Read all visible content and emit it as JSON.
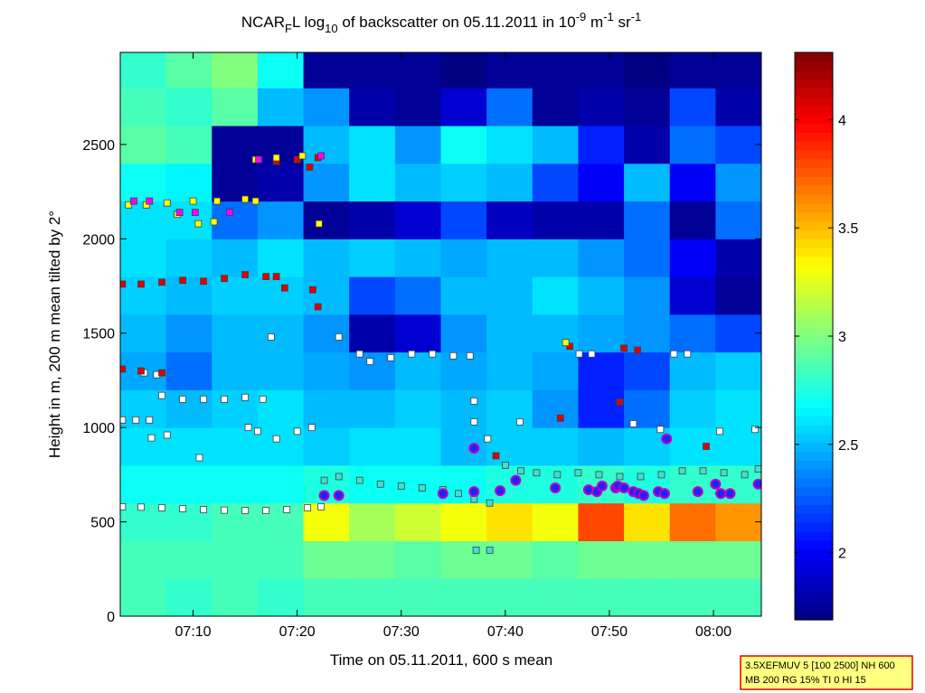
{
  "chart_data": {
    "type": "heatmap",
    "title": [
      "NCAR",
      "F",
      "L log",
      "10",
      " of backscatter on 05.11.2011 in 10",
      "-9",
      " m",
      "-1",
      " sr",
      "-1"
    ],
    "x_label": "Time on 05.11.2011, 600 s mean",
    "y_label": "Height in m, 200 m mean tilted by 2°",
    "xlim": [
      423,
      484.6
    ],
    "xticks": [
      {
        "value": 430,
        "label": "07:10"
      },
      {
        "value": 440,
        "label": "07:20"
      },
      {
        "value": 450,
        "label": "07:30"
      },
      {
        "value": 460,
        "label": "07:40"
      },
      {
        "value": 470,
        "label": "07:50"
      },
      {
        "value": 480,
        "label": "08:00"
      }
    ],
    "ylim": [
      0,
      2988
    ],
    "yticks": [
      0,
      500,
      1000,
      1500,
      2000,
      2500
    ],
    "clim": [
      1.69,
      4.31
    ],
    "cticks": [
      2,
      2.5,
      3,
      3.5,
      4
    ],
    "colormap": "jet",
    "xbins": [
      423,
      427.4,
      431.8,
      436.2,
      440.6,
      445,
      449.4,
      453.8,
      458.2,
      462.6,
      467,
      471.4,
      475.8,
      480.2,
      484.6
    ],
    "ybins": [
      0,
      200,
      400,
      600,
      800,
      1000,
      1200,
      1400,
      1600,
      1800,
      2000,
      2200,
      2400,
      2600,
      2800,
      3000
    ],
    "z": [
      [
        2.85,
        2.8,
        2.85,
        2.8,
        2.85,
        2.85,
        2.85,
        2.85,
        2.85,
        2.85,
        2.85,
        2.85,
        2.85,
        2.85
      ],
      [
        2.85,
        2.85,
        2.85,
        2.85,
        2.95,
        2.95,
        2.9,
        2.95,
        2.95,
        2.9,
        2.95,
        2.95,
        2.95,
        2.95
      ],
      [
        2.8,
        2.8,
        2.85,
        2.85,
        3.3,
        3.1,
        3.2,
        3.3,
        3.4,
        3.3,
        3.8,
        3.4,
        3.7,
        3.6
      ],
      [
        2.7,
        2.7,
        2.7,
        2.7,
        2.75,
        2.7,
        2.7,
        2.7,
        2.75,
        2.75,
        2.8,
        2.75,
        2.8,
        2.8
      ],
      [
        2.6,
        2.6,
        2.6,
        2.6,
        2.55,
        2.6,
        2.6,
        2.5,
        2.55,
        2.55,
        2.5,
        2.55,
        2.6,
        2.6
      ],
      [
        2.55,
        2.5,
        2.55,
        2.6,
        2.5,
        2.5,
        2.55,
        2.5,
        2.55,
        2.4,
        2.1,
        2.3,
        2.55,
        2.6
      ],
      [
        2.45,
        2.3,
        2.5,
        2.5,
        2.45,
        2.4,
        2.5,
        2.45,
        2.5,
        2.45,
        2.1,
        2.2,
        2.5,
        2.55
      ],
      [
        2.5,
        2.4,
        2.5,
        2.5,
        2.4,
        1.8,
        1.9,
        2.4,
        2.5,
        2.5,
        2.45,
        2.4,
        2.3,
        2.2
      ],
      [
        2.55,
        2.5,
        2.55,
        2.55,
        2.5,
        2.2,
        2.3,
        2.5,
        2.5,
        2.6,
        2.5,
        2.4,
        1.9,
        1.75
      ],
      [
        2.6,
        2.55,
        2.5,
        2.6,
        2.5,
        2.55,
        2.5,
        2.45,
        2.5,
        2.5,
        2.4,
        2.3,
        2.0,
        1.8
      ],
      [
        2.6,
        2.6,
        2.3,
        2.4,
        1.75,
        1.8,
        1.9,
        2.2,
        1.85,
        1.8,
        1.8,
        2.3,
        1.75,
        2.3
      ],
      [
        2.7,
        2.65,
        1.75,
        1.8,
        2.4,
        2.6,
        2.5,
        2.55,
        2.5,
        2.2,
        2.0,
        2.5,
        2.0,
        2.4
      ],
      [
        2.9,
        2.85,
        1.75,
        1.75,
        2.5,
        2.6,
        2.4,
        2.7,
        2.6,
        2.5,
        2.1,
        1.8,
        2.3,
        2.2
      ],
      [
        2.85,
        2.8,
        2.9,
        2.5,
        2.4,
        1.8,
        1.75,
        1.9,
        2.3,
        1.75,
        1.8,
        1.75,
        2.2,
        1.8
      ],
      [
        2.8,
        2.9,
        3.0,
        2.7,
        1.75,
        1.75,
        1.75,
        1.7,
        1.75,
        1.75,
        1.75,
        1.7,
        1.75,
        1.75
      ]
    ],
    "overlays": [
      {
        "marker": "square",
        "color": "#ffffff",
        "x": [
          423.2,
          425,
          427,
          429,
          431,
          433,
          435,
          437,
          439,
          441,
          442.3,
          423.2,
          424.5,
          425.8,
          426,
          427.5,
          427,
          429,
          431,
          433,
          435,
          436.7,
          425.3,
          426.5,
          438,
          440,
          441.4,
          435.3,
          436.2,
          437.5,
          430.6,
          444,
          446,
          447,
          449,
          451,
          453,
          455,
          456.6,
          457,
          457,
          458.3,
          461.4,
          467.1,
          468.3,
          476.2,
          477.5,
          472.3,
          474.9,
          480.6,
          484
        ],
        "y": [
          580,
          578,
          575,
          570,
          565,
          562,
          560,
          560,
          565,
          575,
          580,
          1040,
          1040,
          1040,
          945,
          960,
          1170,
          1150,
          1150,
          1150,
          1160,
          1150,
          1290,
          1280,
          940,
          980,
          1000,
          1000,
          980,
          1480,
          840,
          1480,
          1390,
          1350,
          1370,
          1390,
          1390,
          1380,
          1380,
          1140,
          1030,
          940,
          1030,
          1390,
          1390,
          1390,
          1390,
          1020,
          990,
          980,
          990
        ]
      },
      {
        "marker": "square",
        "color": "#40e0d0",
        "x": [
          442.6,
          444,
          446,
          448,
          450,
          452,
          454,
          455.5,
          457,
          458.5,
          460,
          461.5,
          463,
          465,
          467,
          469,
          471,
          473,
          475,
          477,
          479,
          481,
          483,
          484.3,
          457.2,
          458.5
        ],
        "y": [
          720,
          740,
          720,
          700,
          690,
          680,
          670,
          650,
          620,
          600,
          800,
          770,
          760,
          750,
          760,
          750,
          740,
          740,
          750,
          770,
          770,
          760,
          750,
          780,
          350,
          350
        ]
      },
      {
        "marker": "square",
        "color": "#e00000",
        "x": [
          423.2,
          425,
          427,
          429,
          431,
          433,
          435,
          437,
          438,
          438.8,
          441.5,
          442,
          423.2,
          425,
          427,
          436.2,
          438,
          440,
          442,
          441.2,
          466.2,
          471.4,
          472.7,
          459.1,
          465.3,
          471,
          479.3
        ],
        "y": [
          1760,
          1760,
          1770,
          1780,
          1775,
          1790,
          1810,
          1800,
          1800,
          1740,
          1730,
          1640,
          1310,
          1300,
          1290,
          2420,
          2410,
          2420,
          2430,
          2380,
          1430,
          1420,
          1410,
          850,
          1050,
          1135,
          900
        ]
      },
      {
        "marker": "square",
        "color": "#ffff00",
        "x": [
          423.8,
          425.5,
          427.5,
          428.5,
          430,
          430.5,
          432,
          432.3,
          435,
          436,
          436,
          438,
          440.5,
          442.1,
          465.8
        ],
        "y": [
          2180,
          2180,
          2190,
          2130,
          2200,
          2080,
          2090,
          2200,
          2210,
          2200,
          2420,
          2430,
          2440,
          2080,
          1450
        ]
      },
      {
        "marker": "square",
        "color": "#ff00ff",
        "x": [
          424.3,
          425.8,
          428.7,
          430.2,
          433.5,
          436.3,
          442.3
        ],
        "y": [
          2200,
          2200,
          2140,
          2140,
          2140,
          2420,
          2440
        ]
      },
      {
        "marker": "circle",
        "color": "#2020ff",
        "x": [
          442.6,
          444,
          454,
          457,
          457,
          459.5,
          461,
          464.8,
          468,
          468.8,
          469.3,
          470.6,
          470.8,
          471.4,
          472.3,
          472.8,
          473.3,
          474.7,
          475.3,
          475.5,
          478.5,
          480.2,
          480.7,
          481.6,
          484.3
        ],
        "y": [
          640,
          640,
          650,
          890,
          660,
          665,
          720,
          680,
          670,
          660,
          690,
          680,
          690,
          680,
          660,
          650,
          640,
          660,
          650,
          940,
          660,
          700,
          650,
          650,
          700
        ]
      }
    ],
    "info_box": [
      "3.5XEFMUV 5 [100 2500] NH 600",
      "MB 200 RG 15% TI 0 HI 15"
    ]
  }
}
